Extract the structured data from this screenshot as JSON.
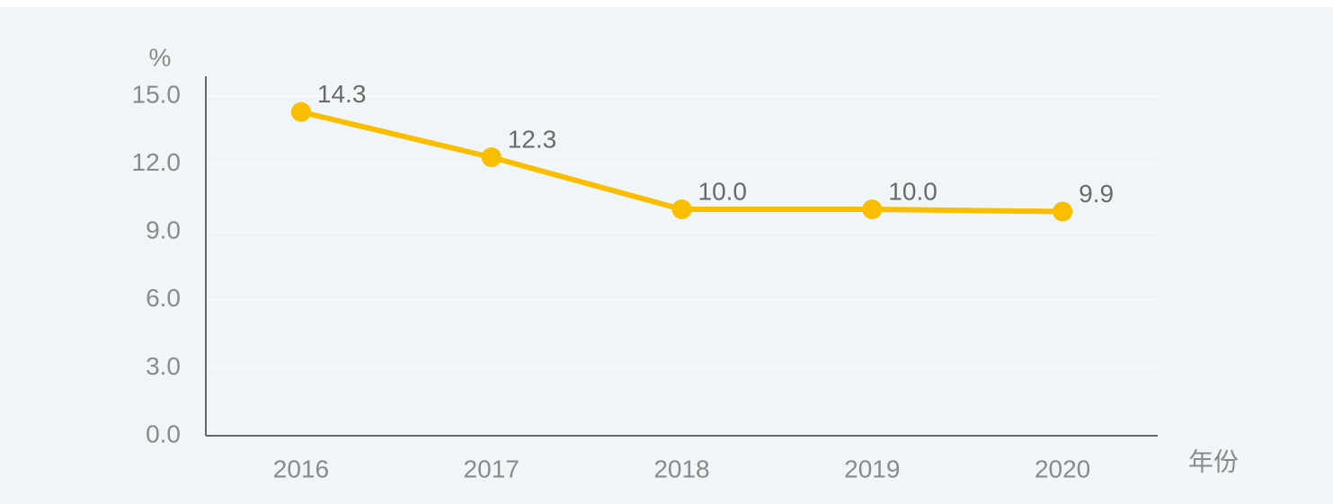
{
  "chart_data": {
    "type": "line",
    "y_label": "%",
    "x_label": "年份",
    "categories": [
      "2016",
      "2017",
      "2018",
      "2019",
      "2020"
    ],
    "series": [
      {
        "color": "#fbbd00",
        "values": [
          14.3,
          12.3,
          10,
          10,
          9.9
        ],
        "value_labels": [
          "14.3",
          "12.3",
          "10.0",
          "10.0",
          "9.9"
        ]
      }
    ],
    "ylim": [
      0,
      15
    ],
    "yticks": [
      {
        "value": 0,
        "label": "0.0"
      },
      {
        "value": 3,
        "label": "3.0"
      },
      {
        "value": 6,
        "label": "6.0"
      },
      {
        "value": 9,
        "label": "9.0"
      },
      {
        "value": 12,
        "label": "12.0"
      },
      {
        "value": 15,
        "label": "15.0"
      }
    ],
    "grid": true
  }
}
